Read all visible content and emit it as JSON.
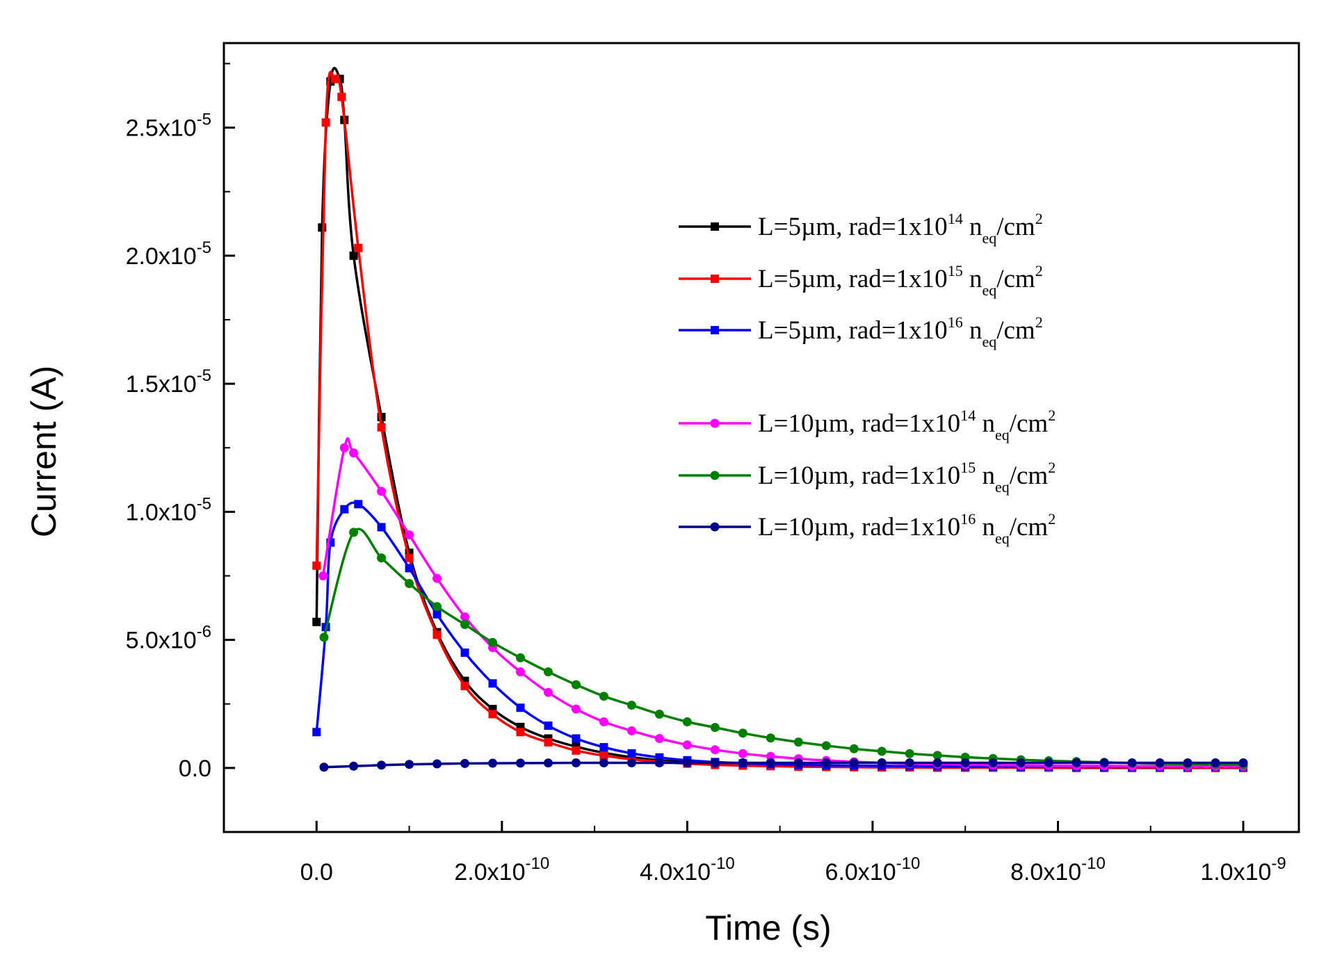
{
  "chart_data": {
    "type": "line",
    "title": "",
    "xlabel": "Time (s)",
    "ylabel": "Current (A)",
    "xlim": [
      -1e-10,
      1.06e-09
    ],
    "ylim": [
      -2.5e-06,
      2.83e-05
    ],
    "grid": false,
    "legend_position": "top-right",
    "x_ticks": [
      {
        "value": 0,
        "mantissa": "0.0",
        "exponent": ""
      },
      {
        "value": 2e-10,
        "mantissa": "2.0x10",
        "exponent": "-10"
      },
      {
        "value": 4e-10,
        "mantissa": "4.0x10",
        "exponent": "-10"
      },
      {
        "value": 6e-10,
        "mantissa": "6.0x10",
        "exponent": "-10"
      },
      {
        "value": 8e-10,
        "mantissa": "8.0x10",
        "exponent": "-10"
      },
      {
        "value": 1e-09,
        "mantissa": "1.0x10",
        "exponent": "-9"
      }
    ],
    "y_ticks": [
      {
        "value": 0,
        "mantissa": "0.0",
        "exponent": ""
      },
      {
        "value": 5e-06,
        "mantissa": "5.0x10",
        "exponent": "-6"
      },
      {
        "value": 1e-05,
        "mantissa": "1.0x10",
        "exponent": "-5"
      },
      {
        "value": 1.5e-05,
        "mantissa": "1.5x10",
        "exponent": "-5"
      },
      {
        "value": 2e-05,
        "mantissa": "2.0x10",
        "exponent": "-5"
      },
      {
        "value": 2.5e-05,
        "mantissa": "2.5x10",
        "exponent": "-5"
      }
    ],
    "series": [
      {
        "name": "L=5µm, rad=1x10^14 neq/cm2",
        "legend": {
          "prefix": "L=5µm, rad=1x10",
          "exp": "14",
          "n": "n",
          "sub": "eq",
          "unit": "/cm",
          "unit_exp": "2"
        },
        "color": "#000000",
        "marker": "square",
        "x": [
          0,
          6e-12,
          1.5e-11,
          2.5e-11,
          3e-11,
          4e-11,
          7e-11,
          1e-10,
          1.3e-10,
          1.6e-10,
          1.9e-10,
          2.2e-10,
          2.5e-10,
          2.8e-10,
          3.1e-10,
          3.4e-10,
          3.7e-10,
          4e-10,
          4.3e-10,
          4.6e-10,
          4.9e-10,
          5.2e-10,
          5.5e-10,
          5.8e-10,
          6.1e-10,
          6.4e-10,
          6.7e-10,
          7e-10,
          7.3e-10,
          7.6e-10,
          7.9e-10,
          8.2e-10,
          8.5e-10,
          8.8e-10,
          9.1e-10,
          9.4e-10,
          9.7e-10,
          1e-09
        ],
        "y": [
          5.7e-06,
          2.11e-05,
          2.68e-05,
          2.69e-05,
          2.53e-05,
          2e-05,
          1.37e-05,
          8.4e-06,
          5.3e-06,
          3.4e-06,
          2.3e-06,
          1.6e-06,
          1.15e-06,
          8.3e-07,
          5.9e-07,
          4.2e-07,
          3e-07,
          2.3e-07,
          1.7e-07,
          1.3e-07,
          1e-07,
          8e-08,
          6e-08,
          5e-08,
          4e-08,
          3e-08,
          3e-08,
          2e-08,
          2e-08,
          2e-08,
          1e-08,
          1e-08,
          1e-08,
          1e-08,
          1e-08,
          1e-08,
          1e-08,
          1e-08
        ]
      },
      {
        "name": "L=5µm, rad=1x10^15 neq/cm2",
        "legend": {
          "prefix": "L=5µm, rad=1x10",
          "exp": "15",
          "n": "n",
          "sub": "eq",
          "unit": "/cm",
          "unit_exp": "2"
        },
        "color": "#ff0000",
        "marker": "square",
        "x": [
          0,
          1e-11,
          2e-11,
          2.7e-11,
          4.5e-11,
          7e-11,
          1e-10,
          1.3e-10,
          1.6e-10,
          1.9e-10,
          2.2e-10,
          2.5e-10,
          2.8e-10,
          3.1e-10,
          3.4e-10,
          3.7e-10,
          4e-10,
          4.3e-10,
          4.6e-10,
          4.9e-10,
          5.2e-10,
          5.5e-10,
          5.8e-10,
          6.1e-10,
          6.4e-10,
          6.7e-10,
          7e-10,
          7.3e-10,
          7.6e-10,
          7.9e-10,
          8.2e-10,
          8.5e-10,
          8.8e-10,
          9.1e-10,
          9.4e-10,
          9.7e-10,
          1e-09
        ],
        "y": [
          7.9e-06,
          2.52e-05,
          2.69e-05,
          2.62e-05,
          2.03e-05,
          1.33e-05,
          8.2e-06,
          5.2e-06,
          3.2e-06,
          2.1e-06,
          1.4e-06,
          1e-06,
          6.8e-07,
          4.8e-07,
          3.4e-07,
          2.4e-07,
          1.7e-07,
          1.2e-07,
          9e-08,
          7e-08,
          5e-08,
          4e-08,
          3e-08,
          2e-08,
          2e-08,
          1e-08,
          1e-08,
          1e-08,
          1e-08,
          1e-08,
          0,
          0,
          0,
          0,
          0,
          0,
          0
        ]
      },
      {
        "name": "L=5µm, rad=1x10^16 neq/cm2",
        "legend": {
          "prefix": "L=5µm, rad=1x10",
          "exp": "16",
          "n": "n",
          "sub": "eq",
          "unit": "/cm",
          "unit_exp": "2"
        },
        "color": "#0000ff",
        "marker": "square",
        "x": [
          0,
          1e-11,
          1.5e-11,
          3e-11,
          4.5e-11,
          7e-11,
          1e-10,
          1.3e-10,
          1.6e-10,
          1.9e-10,
          2.2e-10,
          2.5e-10,
          2.8e-10,
          3.1e-10,
          3.4e-10,
          3.7e-10,
          4e-10,
          4.3e-10,
          4.6e-10,
          4.9e-10,
          5.2e-10,
          5.5e-10,
          5.8e-10,
          6.1e-10,
          6.4e-10,
          6.7e-10,
          7e-10,
          7.3e-10,
          7.6e-10,
          7.9e-10,
          8.2e-10,
          8.5e-10,
          8.8e-10,
          9.1e-10,
          9.4e-10,
          9.7e-10,
          1e-09
        ],
        "y": [
          1.4e-06,
          5.5e-06,
          8.8e-06,
          1.01e-05,
          1.03e-05,
          9.4e-06,
          7.8e-06,
          6e-06,
          4.5e-06,
          3.3e-06,
          2.35e-06,
          1.65e-06,
          1.15e-06,
          8.1e-07,
          5.7e-07,
          4.1e-07,
          3e-07,
          2.3e-07,
          1.8e-07,
          1.5e-07,
          1.2e-07,
          1e-07,
          9e-08,
          8e-08,
          7e-08,
          6e-08,
          6e-08,
          5e-08,
          5e-08,
          5e-08,
          4e-08,
          4e-08,
          4e-08,
          4e-08,
          4e-08,
          4e-08,
          4e-08
        ]
      },
      {
        "name": "L=10µm, rad=1x10^14 neq/cm2",
        "legend": {
          "prefix": "L=10µm, rad=1x10",
          "exp": "14",
          "n": "n",
          "sub": "eq",
          "unit": "/cm",
          "unit_exp": "2"
        },
        "color": "#ff00ff",
        "marker": "circle",
        "x": [
          7e-12,
          3e-11,
          4e-11,
          7e-11,
          1e-10,
          1.3e-10,
          1.6e-10,
          1.9e-10,
          2.2e-10,
          2.5e-10,
          2.8e-10,
          3.1e-10,
          3.4e-10,
          3.7e-10,
          4e-10,
          4.3e-10,
          4.6e-10,
          4.9e-10,
          5.2e-10,
          5.5e-10,
          5.8e-10,
          6.1e-10,
          6.4e-10,
          6.7e-10,
          7e-10,
          7.3e-10,
          7.6e-10,
          7.9e-10,
          8.2e-10,
          8.5e-10,
          8.8e-10,
          9.1e-10,
          9.4e-10,
          9.7e-10,
          1e-09
        ],
        "y": [
          7.5e-06,
          1.25e-05,
          1.23e-05,
          1.08e-05,
          9.1e-06,
          7.4e-06,
          5.9e-06,
          4.7e-06,
          3.75e-06,
          2.95e-06,
          2.3e-06,
          1.8e-06,
          1.45e-06,
          1.15e-06,
          9e-07,
          7.1e-07,
          5.6e-07,
          4.5e-07,
          3.6e-07,
          2.9e-07,
          2.4e-07,
          2e-07,
          1.7e-07,
          1.5e-07,
          1.3e-07,
          1.1e-07,
          1e-07,
          9e-08,
          8e-08,
          8e-08,
          7e-08,
          7e-08,
          6e-08,
          6e-08,
          6e-08
        ]
      },
      {
        "name": "L=10µm, rad=1x10^15 neq/cm2",
        "legend": {
          "prefix": "L=10µm, rad=1x10",
          "exp": "15",
          "n": "n",
          "sub": "eq",
          "unit": "/cm",
          "unit_exp": "2"
        },
        "color": "#008000",
        "marker": "circle",
        "x": [
          8e-12,
          4e-11,
          7e-11,
          1e-10,
          1.3e-10,
          1.6e-10,
          1.9e-10,
          2.2e-10,
          2.5e-10,
          2.8e-10,
          3.1e-10,
          3.4e-10,
          3.7e-10,
          4e-10,
          4.3e-10,
          4.6e-10,
          4.9e-10,
          5.2e-10,
          5.5e-10,
          5.8e-10,
          6.1e-10,
          6.4e-10,
          6.7e-10,
          7e-10,
          7.3e-10,
          7.6e-10,
          7.9e-10,
          8.2e-10,
          8.5e-10,
          8.8e-10,
          9.1e-10,
          9.4e-10,
          9.7e-10,
          1e-09
        ],
        "y": [
          5.1e-06,
          9.2e-06,
          8.2e-06,
          7.2e-06,
          6.3e-06,
          5.6e-06,
          4.9e-06,
          4.3e-06,
          3.75e-06,
          3.25e-06,
          2.8e-06,
          2.45e-06,
          2.1e-06,
          1.8e-06,
          1.58e-06,
          1.36e-06,
          1.17e-06,
          1.01e-06,
          8.7e-07,
          7.5e-07,
          6.5e-07,
          5.6e-07,
          4.9e-07,
          4.2e-07,
          3.7e-07,
          3.2e-07,
          2.8e-07,
          2.5e-07,
          2.2e-07,
          1.9e-07,
          1.7e-07,
          1.5e-07,
          1.4e-07,
          1.3e-07
        ]
      },
      {
        "name": "L=10µm, rad=1x10^16 neq/cm2",
        "legend": {
          "prefix": "L=10µm, rad=1x10",
          "exp": "16",
          "n": "n",
          "sub": "eq",
          "unit": "/cm",
          "unit_exp": "2"
        },
        "color": "#00008b",
        "marker": "circle",
        "x": [
          8e-12,
          4e-11,
          7e-11,
          1e-10,
          1.3e-10,
          1.6e-10,
          1.9e-10,
          2.2e-10,
          2.5e-10,
          2.8e-10,
          3.1e-10,
          3.4e-10,
          3.7e-10,
          4e-10,
          4.3e-10,
          4.6e-10,
          4.9e-10,
          5.2e-10,
          5.5e-10,
          5.8e-10,
          6.1e-10,
          6.4e-10,
          6.7e-10,
          7e-10,
          7.3e-10,
          7.6e-10,
          7.9e-10,
          8.2e-10,
          8.5e-10,
          8.8e-10,
          9.1e-10,
          9.4e-10,
          9.7e-10,
          1e-09
        ],
        "y": [
          3e-08,
          7e-08,
          1.1e-07,
          1.4e-07,
          1.6e-07,
          1.75e-07,
          1.85e-07,
          1.9e-07,
          1.95e-07,
          2e-07,
          2e-07,
          2e-07,
          2e-07,
          2e-07,
          2e-07,
          2e-07,
          2e-07,
          2e-07,
          2e-07,
          2e-07,
          2e-07,
          2e-07,
          2e-07,
          2e-07,
          2e-07,
          2e-07,
          2e-07,
          2e-07,
          2e-07,
          2e-07,
          2e-07,
          2e-07,
          2e-07,
          2e-07
        ]
      }
    ]
  }
}
